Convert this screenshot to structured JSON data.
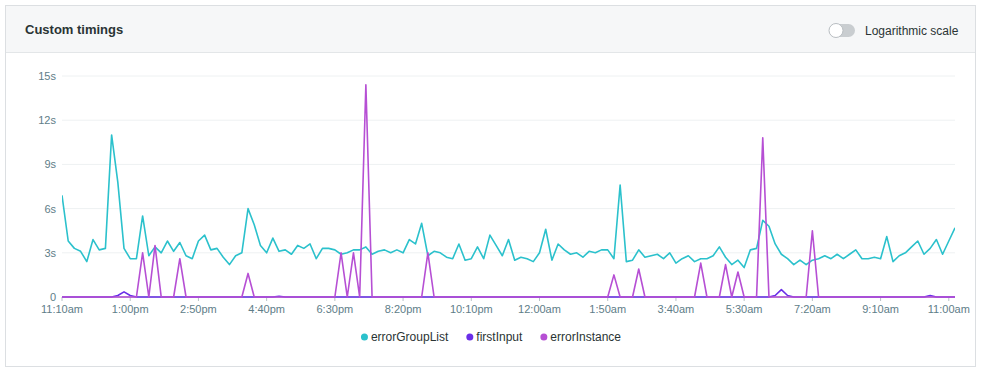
{
  "chart_data": {
    "type": "line",
    "title": "Custom timings",
    "toggle_label": "Logarithmic scale",
    "log": false,
    "grid": true,
    "legend": "bottom",
    "ylim": [
      0,
      15
    ],
    "yticks": [
      0,
      {
        "value": 3,
        "label": "3s"
      },
      {
        "value": 6,
        "label": "6s"
      },
      {
        "value": 9,
        "label": "9s"
      },
      {
        "value": 12,
        "label": "12s"
      },
      {
        "value": 15,
        "label": "15s"
      }
    ],
    "categories": [
      "11:10am",
      null,
      null,
      null,
      null,
      null,
      null,
      null,
      null,
      null,
      null,
      "1:00pm",
      null,
      null,
      null,
      null,
      null,
      null,
      null,
      null,
      null,
      null,
      "2:50pm",
      null,
      null,
      null,
      null,
      null,
      null,
      null,
      null,
      null,
      null,
      "4:40pm",
      null,
      null,
      null,
      null,
      null,
      null,
      null,
      null,
      null,
      null,
      "6:30pm",
      null,
      null,
      null,
      null,
      null,
      null,
      null,
      null,
      null,
      null,
      "8:20pm",
      null,
      null,
      null,
      null,
      null,
      null,
      null,
      null,
      null,
      null,
      "10:10pm",
      null,
      null,
      null,
      null,
      null,
      null,
      null,
      null,
      null,
      null,
      "12:00am",
      null,
      null,
      null,
      null,
      null,
      null,
      null,
      null,
      null,
      null,
      "1:50am",
      null,
      null,
      null,
      null,
      null,
      null,
      null,
      null,
      null,
      null,
      "3:40am",
      null,
      null,
      null,
      null,
      null,
      null,
      null,
      null,
      null,
      null,
      "5:30am",
      null,
      null,
      null,
      null,
      null,
      null,
      null,
      null,
      null,
      null,
      "7:20am",
      null,
      null,
      null,
      null,
      null,
      null,
      null,
      null,
      null,
      null,
      "9:10am",
      null,
      null,
      null,
      null,
      null,
      null,
      null,
      null,
      null,
      null,
      "11:00am",
      null
    ],
    "series": [
      {
        "name": "errorGroupList",
        "color": "#2bc1cc",
        "values": [
          6.9,
          3.8,
          3.3,
          3.1,
          2.4,
          3.9,
          3.2,
          3.3,
          11.0,
          7.8,
          3.3,
          2.6,
          2.6,
          5.5,
          2.8,
          3.4,
          3.0,
          3.8,
          3.1,
          3.7,
          2.8,
          2.6,
          3.8,
          4.2,
          3.2,
          3.3,
          2.7,
          2.2,
          2.8,
          3.0,
          6.0,
          4.9,
          3.5,
          3.0,
          4.0,
          3.1,
          3.2,
          2.9,
          3.5,
          3.3,
          3.6,
          2.6,
          3.3,
          3.3,
          3.2,
          2.9,
          3.0,
          3.2,
          3.2,
          3.4,
          2.9,
          3.1,
          3.2,
          3.0,
          3.2,
          3.0,
          3.9,
          3.6,
          5.0,
          2.8,
          3.1,
          3.0,
          2.7,
          2.6,
          3.6,
          2.5,
          2.6,
          3.4,
          2.6,
          4.2,
          3.5,
          2.8,
          3.9,
          2.5,
          2.7,
          2.6,
          2.4,
          3.0,
          4.6,
          2.5,
          3.6,
          3.2,
          2.9,
          3.0,
          2.7,
          3.1,
          3.0,
          3.2,
          3.2,
          2.6,
          7.6,
          2.4,
          2.5,
          3.2,
          2.7,
          2.8,
          2.9,
          2.6,
          3.0,
          2.3,
          2.6,
          2.8,
          2.4,
          2.6,
          2.6,
          2.8,
          3.4,
          2.7,
          2.2,
          2.5,
          2.0,
          3.2,
          3.3,
          5.2,
          4.8,
          3.6,
          2.9,
          2.6,
          2.2,
          2.5,
          2.2,
          2.5,
          2.6,
          2.8,
          2.6,
          2.9,
          2.6,
          2.9,
          3.2,
          2.6,
          2.6,
          2.7,
          2.6,
          4.1,
          2.4,
          2.8,
          3.0,
          3.4,
          3.8,
          2.9,
          3.3,
          3.9,
          2.9,
          3.8,
          4.7
        ]
      },
      {
        "name": "firstInput",
        "color": "#6a2ee8",
        "values": [
          0,
          0,
          0,
          0,
          0,
          0,
          0,
          0,
          0,
          0.1,
          0.35,
          0.1,
          0,
          0,
          0,
          0,
          0,
          0,
          0,
          0,
          0,
          0,
          0,
          0,
          0,
          0,
          0,
          0,
          0,
          0,
          0,
          0,
          0,
          0,
          0,
          0.05,
          0,
          0,
          0,
          0,
          0,
          0,
          0,
          0,
          0,
          0,
          0,
          0,
          0,
          0,
          0,
          0,
          0,
          0,
          0,
          0,
          0,
          0,
          0,
          0,
          0,
          0,
          0,
          0,
          0,
          0,
          0,
          0,
          0,
          0,
          0,
          0,
          0,
          0,
          0,
          0,
          0,
          0,
          0,
          0,
          0,
          0,
          0,
          0,
          0,
          0,
          0,
          0,
          0,
          0,
          0,
          0,
          0,
          0,
          0,
          0,
          0,
          0,
          0,
          0,
          0,
          0,
          0,
          0,
          0,
          0,
          0,
          0,
          0,
          0,
          0,
          0,
          0,
          0,
          0,
          0.1,
          0.5,
          0.1,
          0,
          0,
          0,
          0,
          0,
          0,
          0,
          0,
          0,
          0,
          0,
          0,
          0,
          0,
          0,
          0,
          0,
          0,
          0,
          0,
          0,
          0,
          0.1,
          0,
          0,
          0,
          0
        ]
      },
      {
        "name": "errorInstance",
        "color": "#b64fd4",
        "values": [
          0,
          0,
          0,
          0,
          0,
          0,
          0,
          0,
          0,
          0,
          0,
          0,
          0,
          3.0,
          0,
          3.5,
          0,
          0,
          0,
          2.6,
          0,
          0,
          0,
          0,
          0,
          0,
          0,
          0,
          0,
          0,
          1.6,
          0,
          0,
          0,
          0,
          0,
          0,
          0,
          0,
          0,
          0,
          0,
          0,
          0,
          0,
          3.0,
          0,
          3.0,
          0,
          14.4,
          0,
          0,
          0,
          0,
          0,
          0,
          0,
          0,
          0,
          3.0,
          0,
          0,
          0,
          0,
          0,
          0,
          0,
          0,
          0,
          0,
          0,
          0,
          0,
          0,
          0,
          0,
          0,
          0,
          0,
          0,
          0,
          0,
          0,
          0,
          0,
          0,
          0,
          0,
          0,
          1.5,
          0,
          0,
          0,
          1.9,
          0,
          0,
          0,
          0,
          0,
          0,
          0,
          0,
          0,
          2.3,
          0,
          0,
          0,
          2.2,
          0,
          1.7,
          0,
          0,
          0,
          10.8,
          0,
          0,
          0,
          0,
          0,
          0,
          0,
          4.5,
          0,
          0,
          0,
          0,
          0,
          0,
          0,
          0,
          0,
          0,
          0,
          0,
          0,
          0,
          0,
          0,
          0,
          0,
          0,
          0,
          0,
          0,
          0
        ]
      }
    ]
  }
}
